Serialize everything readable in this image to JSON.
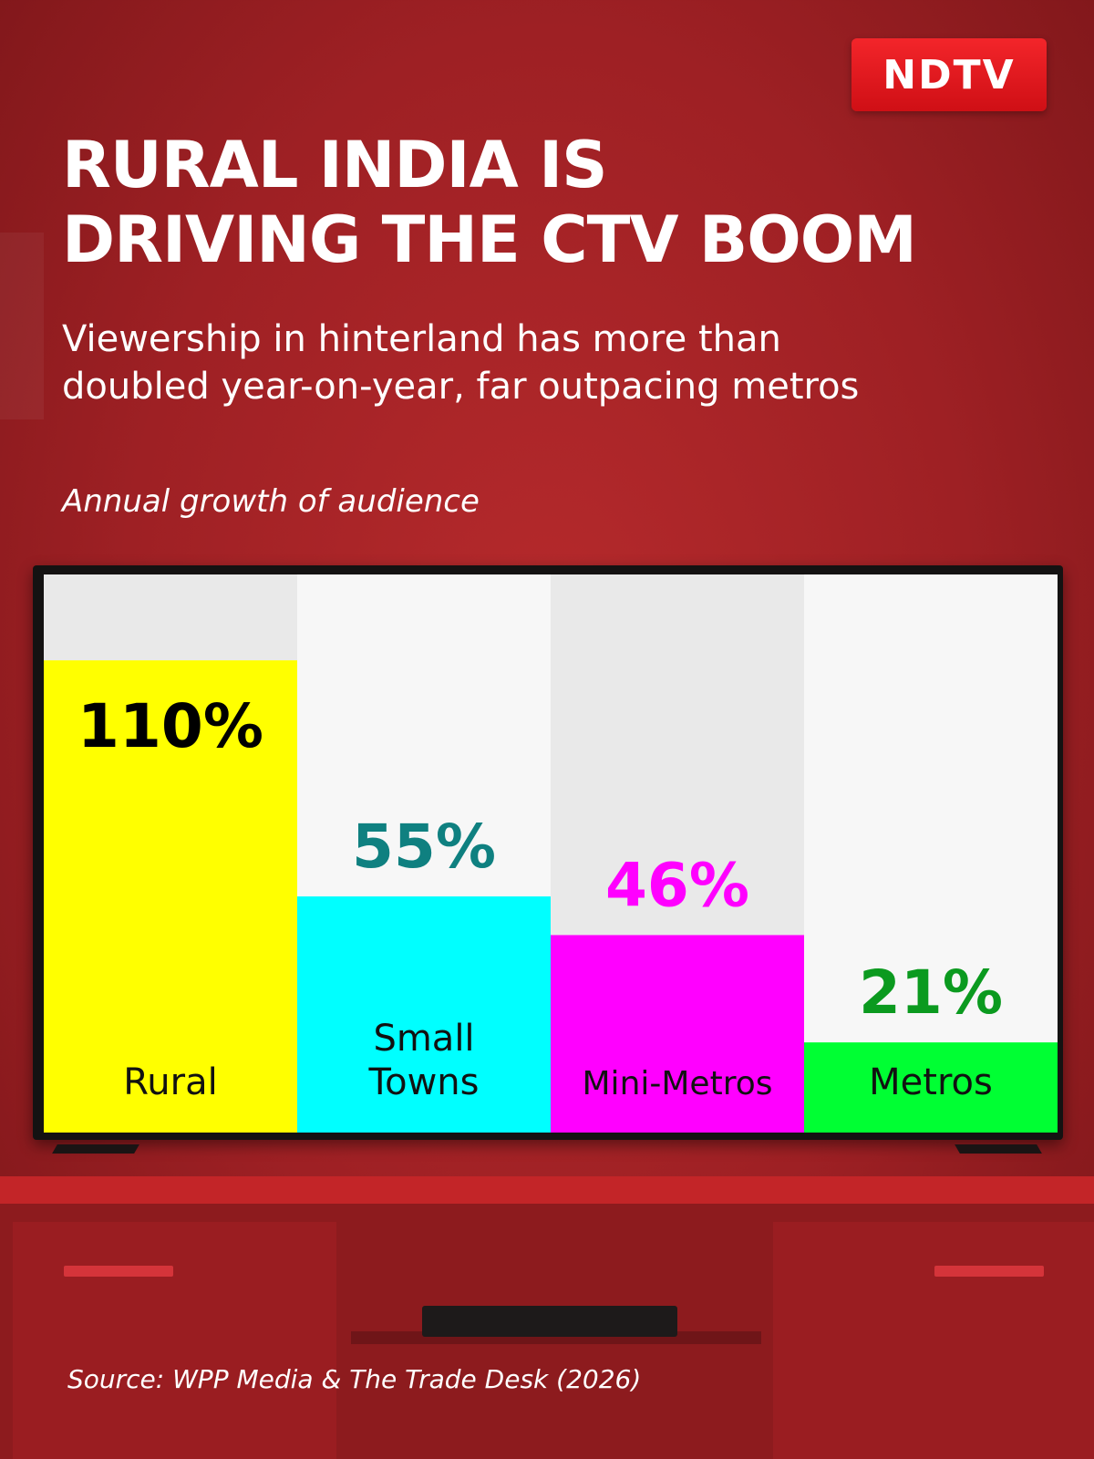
{
  "brand": {
    "logo_text": "NDTV"
  },
  "header": {
    "title_line1": "RURAL INDIA IS",
    "title_line2": "DRIVING THE CTV BOOM",
    "subtitle_line1": "Viewership in hinterland has more than",
    "subtitle_line2": "doubled year-on-year, far outpacing metros"
  },
  "chart_label": "Annual growth of audience",
  "chart_data": {
    "type": "bar",
    "title": "Annual growth of audience",
    "categories": [
      "Rural",
      "Small Towns",
      "Mini-Metros",
      "Metros"
    ],
    "category_lines": [
      [
        "Rural"
      ],
      [
        "Small",
        "Towns"
      ],
      [
        "Mini-Metros"
      ],
      [
        "Metros"
      ]
    ],
    "values": [
      110,
      55,
      46,
      21
    ],
    "value_labels": [
      "110%",
      "55%",
      "46%",
      "21%"
    ],
    "unit": "%",
    "ylim": [
      0,
      130
    ],
    "grid": false,
    "legend": "none",
    "bar_colors": [
      "#ffff00",
      "#00ffff",
      "#ff00ff",
      "#00ff33"
    ],
    "value_label_colors": [
      "#000000",
      "#0f8080",
      "#ff00ff",
      "#0b9a1f"
    ]
  },
  "source": "Source: WPP Media & The Trade Desk (2026)",
  "colors": {
    "brand_red": "#e31b23",
    "background": "#a32226"
  }
}
